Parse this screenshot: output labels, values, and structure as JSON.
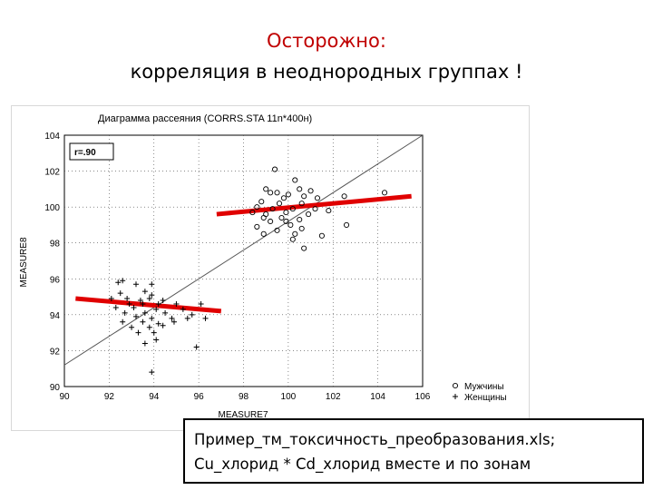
{
  "slide": {
    "title_line1": "Осторожно:",
    "title_line2": "корреляция в неоднородных группах !",
    "note_line1": "Пример_тм_токсичность_преобразования.xls;",
    "note_line2": "Cu_хлорид * Cd_хлорид вместе и по зонам"
  },
  "colors": {
    "title_accent": "#c00000",
    "group_fit_line": "#e00000",
    "overall_fit_line": "#555555"
  },
  "chart_data": {
    "type": "scatter",
    "title": "Диаграмма рассеяния (CORRS.STA 11n*400н)",
    "xlabel": "MEASURE7",
    "ylabel": "MEASURE8",
    "xlim": [
      90,
      106
    ],
    "ylim": [
      90,
      104
    ],
    "xticks": [
      "90",
      "92",
      "94",
      "96",
      "98",
      "100",
      "102",
      "104",
      "106"
    ],
    "yticks": [
      "90",
      "92",
      "94",
      "96",
      "98",
      "100",
      "102",
      "104"
    ],
    "grid": true,
    "legend_position": "bottom-right",
    "annotation": "r=.90",
    "series": [
      {
        "name": "Мужчины",
        "marker": "circle",
        "points": [
          [
            99.4,
            102.1
          ],
          [
            100.3,
            101.5
          ],
          [
            99.0,
            101.0
          ],
          [
            100.5,
            101.0
          ],
          [
            99.2,
            100.8
          ],
          [
            99.5,
            100.8
          ],
          [
            100.0,
            100.7
          ],
          [
            100.7,
            100.6
          ],
          [
            102.5,
            100.6
          ],
          [
            99.8,
            100.5
          ],
          [
            101.3,
            100.5
          ],
          [
            98.8,
            100.3
          ],
          [
            99.6,
            100.2
          ],
          [
            100.6,
            100.2
          ],
          [
            104.3,
            100.8
          ],
          [
            98.6,
            100.0
          ],
          [
            99.3,
            99.9
          ],
          [
            100.2,
            99.9
          ],
          [
            101.2,
            99.9
          ],
          [
            101.8,
            99.8
          ],
          [
            98.4,
            99.7
          ],
          [
            99.0,
            99.6
          ],
          [
            99.9,
            99.7
          ],
          [
            100.9,
            99.6
          ],
          [
            98.9,
            99.4
          ],
          [
            99.7,
            99.4
          ],
          [
            100.5,
            99.3
          ],
          [
            99.2,
            99.2
          ],
          [
            100.1,
            99.0
          ],
          [
            102.6,
            99.0
          ],
          [
            98.6,
            98.9
          ],
          [
            99.5,
            98.7
          ],
          [
            100.6,
            98.8
          ],
          [
            100.3,
            98.5
          ],
          [
            98.9,
            98.5
          ],
          [
            101.5,
            98.4
          ],
          [
            100.2,
            98.2
          ],
          [
            100.7,
            97.7
          ],
          [
            99.9,
            99.2
          ],
          [
            101.0,
            100.9
          ]
        ]
      },
      {
        "name": "Женщины",
        "marker": "plus",
        "points": [
          [
            92.6,
            95.9
          ],
          [
            92.4,
            95.8
          ],
          [
            93.2,
            95.7
          ],
          [
            93.9,
            95.7
          ],
          [
            93.6,
            95.3
          ],
          [
            93.9,
            95.1
          ],
          [
            92.5,
            95.2
          ],
          [
            92.1,
            94.9
          ],
          [
            92.8,
            94.9
          ],
          [
            93.4,
            94.8
          ],
          [
            93.8,
            94.9
          ],
          [
            94.4,
            94.8
          ],
          [
            92.9,
            94.6
          ],
          [
            93.5,
            94.6
          ],
          [
            94.2,
            94.6
          ],
          [
            95.0,
            94.6
          ],
          [
            96.1,
            94.6
          ],
          [
            92.3,
            94.4
          ],
          [
            93.1,
            94.4
          ],
          [
            94.1,
            94.3
          ],
          [
            95.3,
            94.3
          ],
          [
            92.7,
            94.1
          ],
          [
            93.6,
            94.1
          ],
          [
            94.5,
            94.1
          ],
          [
            95.7,
            94.0
          ],
          [
            93.2,
            93.9
          ],
          [
            93.9,
            93.8
          ],
          [
            94.8,
            93.8
          ],
          [
            95.5,
            93.8
          ],
          [
            96.3,
            93.8
          ],
          [
            92.6,
            93.6
          ],
          [
            93.5,
            93.6
          ],
          [
            94.2,
            93.5
          ],
          [
            94.9,
            93.6
          ],
          [
            93.0,
            93.3
          ],
          [
            93.8,
            93.3
          ],
          [
            94.4,
            93.4
          ],
          [
            93.3,
            93.0
          ],
          [
            94.0,
            93.0
          ],
          [
            94.1,
            92.6
          ],
          [
            93.6,
            92.4
          ],
          [
            95.9,
            92.2
          ],
          [
            93.9,
            90.8
          ]
        ]
      }
    ],
    "regression_lines": [
      {
        "scope": "all",
        "from": [
          90,
          91.2
        ],
        "to": [
          106,
          104.0
        ]
      },
      {
        "scope": "Мужчины",
        "from": [
          96.8,
          99.6
        ],
        "to": [
          105.5,
          100.6
        ]
      },
      {
        "scope": "Женщины",
        "from": [
          90.5,
          94.9
        ],
        "to": [
          97.0,
          94.2
        ]
      }
    ]
  }
}
